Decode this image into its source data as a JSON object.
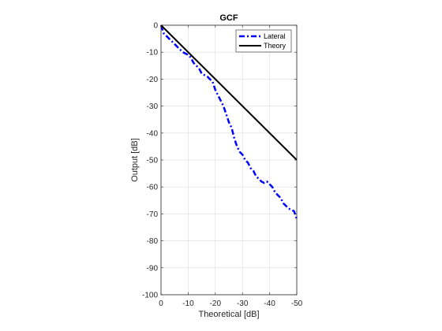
{
  "chart_data": {
    "type": "line",
    "title": "GCF",
    "xlabel": "Theoretical [dB]",
    "ylabel": "Output [dB]",
    "xlim": [
      0,
      -50
    ],
    "ylim": [
      -100,
      0
    ],
    "x_direction": "reversed",
    "grid": true,
    "legend_position": "top-right",
    "x_ticks": [
      0,
      -10,
      -20,
      -30,
      -40,
      -50
    ],
    "x_tick_labels": [
      "0",
      "-10",
      "-20",
      "-30",
      "-40",
      "-50"
    ],
    "y_ticks": [
      0,
      -10,
      -20,
      -30,
      -40,
      -50,
      -60,
      -70,
      -80,
      -90,
      -100
    ],
    "y_tick_labels": [
      "0",
      "-10",
      "-20",
      "-30",
      "-40",
      "-50",
      "-60",
      "-70",
      "-80",
      "-90",
      "-100"
    ],
    "series": [
      {
        "name": "Lateral",
        "color": "#0000ff",
        "style": "dash-dot",
        "x": [
          0,
          -1,
          -2,
          -3,
          -4,
          -5,
          -6,
          -7,
          -8,
          -9,
          -10,
          -11,
          -12,
          -13,
          -14,
          -15,
          -16,
          -17,
          -18,
          -19,
          -20,
          -21,
          -22,
          -23,
          -24,
          -25,
          -26,
          -27,
          -28,
          -29,
          -30,
          -31,
          -32,
          -33,
          -34,
          -35,
          -36,
          -37,
          -38,
          -39,
          -40,
          -41,
          -42,
          -43,
          -44,
          -45,
          -46,
          -47,
          -48,
          -49,
          -50
        ],
        "y": [
          0,
          -3,
          -4,
          -5,
          -6,
          -7,
          -8,
          -9,
          -10,
          -10.5,
          -11,
          -12,
          -14,
          -15,
          -16,
          -18,
          -18.5,
          -19,
          -20,
          -21,
          -24,
          -26,
          -28,
          -30,
          -33,
          -36,
          -38,
          -42,
          -45,
          -47,
          -48,
          -50,
          -51,
          -53,
          -54,
          -56,
          -57,
          -58,
          -58.5,
          -58,
          -59,
          -60,
          -62,
          -63,
          -64,
          -66,
          -67,
          -68,
          -68.5,
          -69,
          -72
        ]
      },
      {
        "name": "Theory",
        "color": "#000000",
        "style": "solid",
        "x": [
          0,
          -50
        ],
        "y": [
          0,
          -50
        ]
      }
    ]
  }
}
